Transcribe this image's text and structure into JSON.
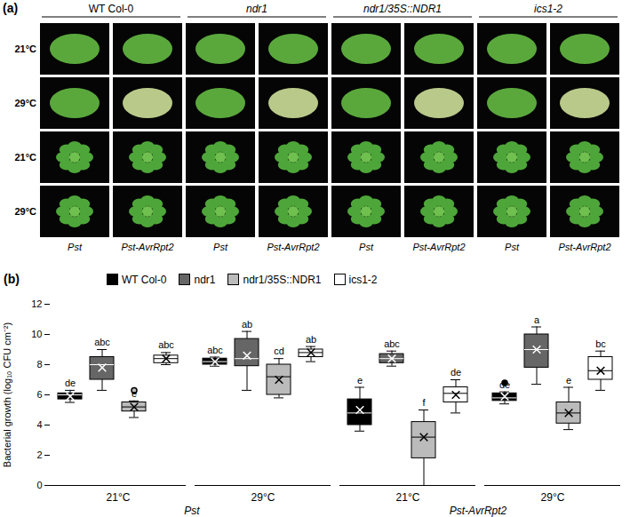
{
  "panel_a": {
    "label": "(a)",
    "genotypes": [
      "WT Col-0",
      "ndr1",
      "ndr1/35S::NDR1",
      "ics1-2"
    ],
    "row_labels": [
      "21°C",
      "29°C",
      "21°C",
      "29°C"
    ],
    "pathogens": [
      "Pst",
      "Pst-AvrRpt2"
    ]
  },
  "chart_data": {
    "type": "box",
    "panel_label": "(b)",
    "ylabel": "Bacterial growth (log₁₀ CFU cm⁻²)",
    "categories": [
      "21°C",
      "29°C",
      "21°C",
      "29°C"
    ],
    "pathogens": [
      "Pst",
      "Pst",
      "Pst-AvrRpt2",
      "Pst-AvrRpt2"
    ],
    "ylim": [
      0,
      12
    ],
    "yticks": [
      0,
      2,
      4,
      6,
      8,
      10,
      12
    ],
    "grid": false,
    "series": [
      {
        "name": "WT Col-0",
        "color": "#000000",
        "boxes": [
          {
            "min": 5.5,
            "q1": 5.7,
            "median": 6.0,
            "q3": 6.1,
            "max": 6.3,
            "mean": 5.9,
            "outliers": [],
            "letter": "de"
          },
          {
            "min": 7.9,
            "q1": 8.0,
            "median": 8.2,
            "q3": 8.4,
            "max": 8.5,
            "mean": 8.2,
            "outliers": [],
            "letter": "abc"
          },
          {
            "min": 3.6,
            "q1": 4.0,
            "median": 4.8,
            "q3": 5.7,
            "max": 6.5,
            "mean": 5.0,
            "outliers": [],
            "letter": "e"
          },
          {
            "min": 5.4,
            "q1": 5.6,
            "median": 5.8,
            "q3": 6.1,
            "max": 6.2,
            "mean": 5.9,
            "outliers": [
              6.8
            ],
            "letter": "de"
          }
        ]
      },
      {
        "name": "ndr1",
        "color": "#666666",
        "boxes": [
          {
            "min": 6.3,
            "q1": 7.0,
            "median": 8.0,
            "q3": 8.5,
            "max": 9.0,
            "mean": 7.8,
            "outliers": [],
            "letter": "abc"
          },
          {
            "min": 6.3,
            "q1": 7.9,
            "median": 8.4,
            "q3": 9.7,
            "max": 10.2,
            "mean": 8.6,
            "outliers": [],
            "letter": "ab"
          },
          {
            "min": 7.9,
            "q1": 8.1,
            "median": 8.4,
            "q3": 8.7,
            "max": 8.9,
            "mean": 8.4,
            "outliers": [],
            "letter": "abc"
          },
          {
            "min": 6.7,
            "q1": 7.8,
            "median": 9.0,
            "q3": 10.0,
            "max": 10.5,
            "mean": 9.0,
            "outliers": [],
            "letter": "a"
          }
        ]
      },
      {
        "name": "ndr1/35S::NDR1",
        "color": "#bbbbbb",
        "boxes": [
          {
            "min": 4.5,
            "q1": 4.9,
            "median": 5.2,
            "q3": 5.5,
            "max": 5.6,
            "mean": 5.2,
            "outliers": [
              6.3
            ],
            "letter": "e"
          },
          {
            "min": 5.8,
            "q1": 6.0,
            "median": 7.2,
            "q3": 8.0,
            "max": 8.4,
            "mean": 7.0,
            "outliers": [],
            "letter": "cd"
          },
          {
            "min": 0,
            "q1": 1.8,
            "median": 3.2,
            "q3": 4.2,
            "max": 5.0,
            "mean": 3.2,
            "outliers": [],
            "letter": "f"
          },
          {
            "min": 3.7,
            "q1": 4.1,
            "median": 4.8,
            "q3": 5.5,
            "max": 6.5,
            "mean": 4.8,
            "outliers": [],
            "letter": "e"
          }
        ]
      },
      {
        "name": "ics1-2",
        "color": "#ffffff",
        "boxes": [
          {
            "min": 8.0,
            "q1": 8.1,
            "median": 8.4,
            "q3": 8.6,
            "max": 8.8,
            "mean": 8.4,
            "outliers": [],
            "letter": "abc"
          },
          {
            "min": 8.2,
            "q1": 8.5,
            "median": 8.8,
            "q3": 9.0,
            "max": 9.2,
            "mean": 8.8,
            "outliers": [],
            "letter": "ab"
          },
          {
            "min": 4.8,
            "q1": 5.5,
            "median": 6.1,
            "q3": 6.5,
            "max": 7.0,
            "mean": 6.0,
            "outliers": [],
            "letter": "de"
          },
          {
            "min": 6.3,
            "q1": 7.0,
            "median": 7.6,
            "q3": 8.5,
            "max": 8.9,
            "mean": 7.6,
            "outliers": [],
            "letter": "bc"
          }
        ]
      }
    ]
  }
}
